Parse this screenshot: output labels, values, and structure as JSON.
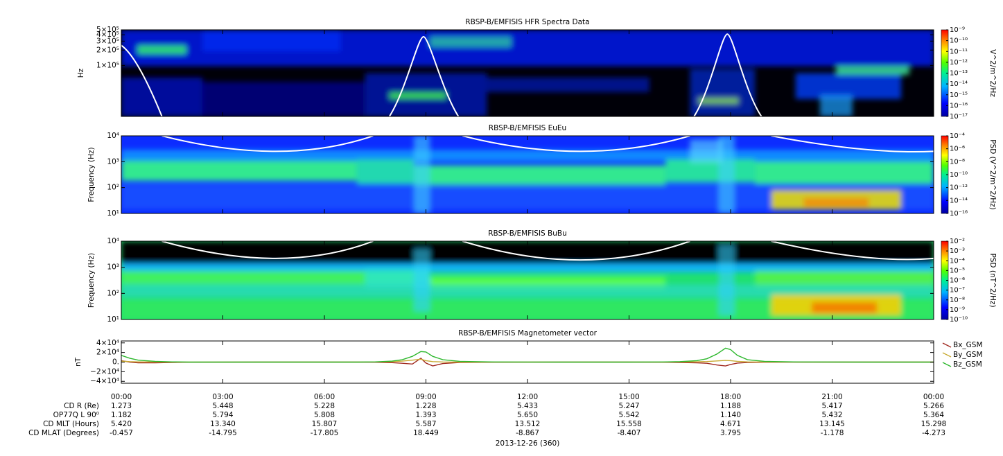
{
  "chart_data": [
    {
      "type": "spectrogram",
      "title": "RBSP-B/EMFISIS  HFR Spectra Data",
      "ylabel": "Hz",
      "ylog": true,
      "ylim": [
        10000,
        500000
      ],
      "yticks": [
        {
          "value": 100000,
          "label": "1×10⁵"
        },
        {
          "value": 200000,
          "label": "2×10⁵"
        },
        {
          "value": 300000,
          "label": "3×10⁵"
        },
        {
          "value": 400000,
          "label": "4×10⁵"
        },
        {
          "value": 500000,
          "label": "5×10⁵"
        }
      ],
      "colorbar": {
        "label": "V^2/m^2/Hz",
        "zlog": true,
        "zlim": [
          1e-17,
          1e-09
        ],
        "zticks": [
          {
            "value": 1e-17,
            "label": "10⁻¹⁷"
          },
          {
            "value": 1e-16,
            "label": "10⁻¹⁶"
          },
          {
            "value": 1e-15,
            "label": "10⁻¹⁵"
          },
          {
            "value": 1e-14,
            "label": "10⁻¹⁴"
          },
          {
            "value": 1e-13,
            "label": "10⁻¹³"
          },
          {
            "value": 1e-12,
            "label": "10⁻¹²"
          },
          {
            "value": 1e-11,
            "label": "10⁻¹¹"
          },
          {
            "value": 1e-10,
            "label": "10⁻¹⁰"
          },
          {
            "value": 1e-09,
            "label": "10⁻⁹"
          }
        ]
      }
    },
    {
      "type": "spectrogram",
      "title": "RBSP-B/EMFISIS  EuEu",
      "ylabel": "Frequency (Hz)",
      "ylog": true,
      "ylim": [
        10,
        10000
      ],
      "yticks": [
        {
          "value": 10,
          "label": "10¹"
        },
        {
          "value": 100,
          "label": "10²"
        },
        {
          "value": 1000,
          "label": "10³"
        },
        {
          "value": 10000,
          "label": "10⁴"
        }
      ],
      "colorbar": {
        "label": "PSD (V^2/m^2/Hz)",
        "zlog": true,
        "zlim": [
          1e-16,
          0.0001
        ],
        "zticks": [
          {
            "value": 1e-16,
            "label": "10⁻¹⁶"
          },
          {
            "value": 1e-14,
            "label": "10⁻¹⁴"
          },
          {
            "value": 1e-12,
            "label": "10⁻¹²"
          },
          {
            "value": 1e-10,
            "label": "10⁻¹⁰"
          },
          {
            "value": 1e-08,
            "label": "10⁻⁸"
          },
          {
            "value": 1e-06,
            "label": "10⁻⁶"
          },
          {
            "value": 0.0001,
            "label": "10⁻⁴"
          }
        ]
      }
    },
    {
      "type": "spectrogram",
      "title": "RBSP-B/EMFISIS  BuBu",
      "ylabel": "Frequency (Hz)",
      "ylog": true,
      "ylim": [
        10,
        10000
      ],
      "yticks": [
        {
          "value": 10,
          "label": "10¹"
        },
        {
          "value": 100,
          "label": "10²"
        },
        {
          "value": 1000,
          "label": "10³"
        },
        {
          "value": 10000,
          "label": "10⁴"
        }
      ],
      "colorbar": {
        "label": "PSD (nT^2/Hz)",
        "zlog": true,
        "zlim": [
          1e-10,
          0.01
        ],
        "zticks": [
          {
            "value": 1e-10,
            "label": "10⁻¹⁰"
          },
          {
            "value": 1e-09,
            "label": "10⁻⁹"
          },
          {
            "value": 1e-08,
            "label": "10⁻⁸"
          },
          {
            "value": 1e-07,
            "label": "10⁻⁷"
          },
          {
            "value": 1e-06,
            "label": "10⁻⁶"
          },
          {
            "value": 1e-05,
            "label": "10⁻⁵"
          },
          {
            "value": 0.0001,
            "label": "10⁻⁴"
          },
          {
            "value": 0.001,
            "label": "10⁻³"
          },
          {
            "value": 0.01,
            "label": "10⁻²"
          }
        ]
      }
    },
    {
      "type": "line",
      "title": "RBSP-B/EMFISIS  Magnetometer vector",
      "ylabel": "nT",
      "ylim": [
        -44000,
        44000
      ],
      "yticks": [
        {
          "value": -40000,
          "label": "−4×10⁴"
        },
        {
          "value": -20000,
          "label": "−2×10⁴"
        },
        {
          "value": 0,
          "label": "0."
        },
        {
          "value": 20000,
          "label": "2×10⁴"
        },
        {
          "value": 40000,
          "label": "4×10⁴"
        }
      ],
      "xlim": [
        0,
        24
      ],
      "xticks": [
        {
          "value": 0,
          "label": "00:00"
        },
        {
          "value": 3,
          "label": "03:00"
        },
        {
          "value": 6,
          "label": "06:00"
        },
        {
          "value": 9,
          "label": "09:00"
        },
        {
          "value": 12,
          "label": "12:00"
        },
        {
          "value": 15,
          "label": "15:00"
        },
        {
          "value": 18,
          "label": "18:00"
        },
        {
          "value": 21,
          "label": "21:00"
        },
        {
          "value": 24,
          "label": "00:00"
        }
      ],
      "x": [
        0,
        0.25,
        0.5,
        1,
        1.5,
        2,
        4,
        6,
        7,
        7.5,
        8,
        8.3,
        8.6,
        8.85,
        9.0,
        9.2,
        9.5,
        10,
        11,
        13,
        15,
        16,
        16.5,
        17,
        17.3,
        17.6,
        17.85,
        18.0,
        18.2,
        18.5,
        19,
        20,
        22,
        24
      ],
      "series": [
        {
          "name": "Bx_GSM",
          "color": "#a0281e",
          "values": [
            3000,
            0,
            -1500,
            -1500,
            -800,
            -300,
            0,
            0,
            0,
            -300,
            -1200,
            -2500,
            -4000,
            8000,
            -2000,
            -8000,
            -3000,
            -800,
            -200,
            0,
            0,
            -200,
            -800,
            -1500,
            -2500,
            -6000,
            -8000,
            -5000,
            -2000,
            -800,
            -300,
            0,
            0,
            0
          ]
        },
        {
          "name": "By_GSM",
          "color": "#c8aa32",
          "values": [
            2000,
            1000,
            500,
            200,
            0,
            0,
            0,
            0,
            0,
            200,
            800,
            2000,
            4000,
            6000,
            3000,
            1000,
            300,
            0,
            0,
            0,
            0,
            0,
            200,
            600,
            1200,
            2500,
            3500,
            3000,
            1500,
            500,
            200,
            0,
            0,
            0
          ]
        },
        {
          "name": "Bz_GSM",
          "color": "#2db82d",
          "values": [
            14000,
            8000,
            4000,
            1500,
            500,
            0,
            0,
            0,
            0,
            500,
            2000,
            5000,
            12000,
            22000,
            21000,
            12000,
            5000,
            1500,
            300,
            0,
            0,
            200,
            1000,
            3000,
            7000,
            17000,
            29000,
            26000,
            14000,
            5000,
            1500,
            300,
            0,
            0
          ]
        }
      ]
    }
  ],
  "ephemeris": {
    "rows": [
      {
        "label": "CD R (Re)",
        "values": [
          "1.273",
          "5.448",
          "5.228",
          "1.228",
          "5.433",
          "5.247",
          "1.188",
          "5.417",
          "5.266"
        ]
      },
      {
        "label": "OP77Q L 90⁰",
        "values": [
          "1.182",
          "5.794",
          "5.808",
          "1.393",
          "5.650",
          "5.542",
          "1.140",
          "5.432",
          "5.364"
        ]
      },
      {
        "label": "CD MLT (Hours)",
        "values": [
          "5.420",
          "13.340",
          "15.807",
          "5.587",
          "13.512",
          "15.558",
          "4.671",
          "13.145",
          "15.298"
        ]
      },
      {
        "label": "CD MLAT (Degrees)",
        "values": [
          "-0.457",
          "-14.795",
          "-17.805",
          "18.449",
          "-8.867",
          "-8.407",
          "3.795",
          "-1.178",
          "-4.273"
        ]
      }
    ],
    "date": "2013-12-26 (360)"
  }
}
